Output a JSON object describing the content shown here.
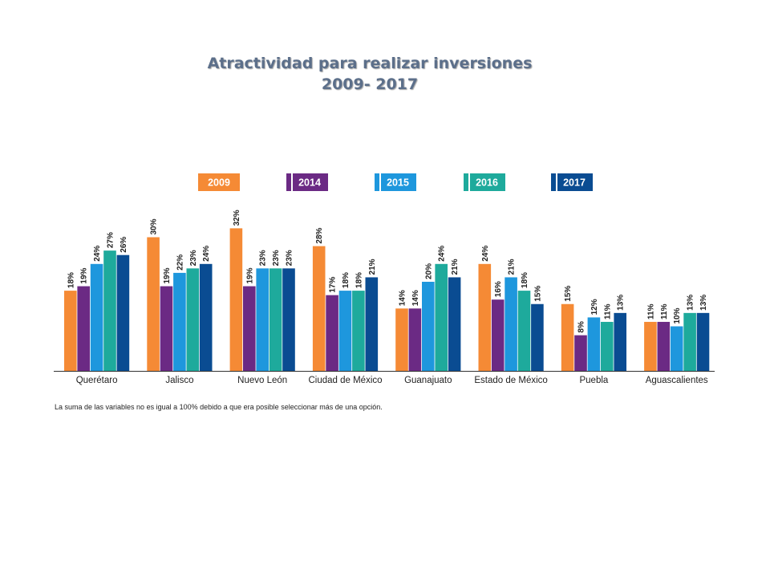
{
  "chart_data": {
    "type": "bar",
    "title": "Atractividad para realizar inversiones",
    "subtitle": "2009- 2017",
    "categories": [
      "Querétaro",
      "Jalisco",
      "Nuevo León",
      "Ciudad de México",
      "Guanajuato",
      "Estado de México",
      "Puebla",
      "Aguascalientes"
    ],
    "series": [
      {
        "name": "2009",
        "color": "#f58a35",
        "values": [
          18,
          30,
          32,
          28,
          14,
          24,
          15,
          11
        ]
      },
      {
        "name": "2014",
        "color": "#6b2a84",
        "values": [
          19,
          19,
          19,
          17,
          14,
          16,
          8,
          11
        ]
      },
      {
        "name": "2015",
        "color": "#1e97dd",
        "values": [
          24,
          22,
          23,
          18,
          20,
          21,
          12,
          10
        ]
      },
      {
        "name": "2016",
        "color": "#1eaa9c",
        "values": [
          27,
          23,
          23,
          18,
          24,
          18,
          11,
          13
        ]
      },
      {
        "name": "2017",
        "color": "#0a4c92",
        "values": [
          26,
          24,
          23,
          21,
          21,
          15,
          13,
          13
        ]
      }
    ],
    "value_suffix": "%",
    "ylim": [
      0,
      32
    ],
    "grid": false,
    "legend_position": "top"
  },
  "footnote": "La suma de las variables no es igual a 100% debido a que era posible seleccionar más de una opción."
}
